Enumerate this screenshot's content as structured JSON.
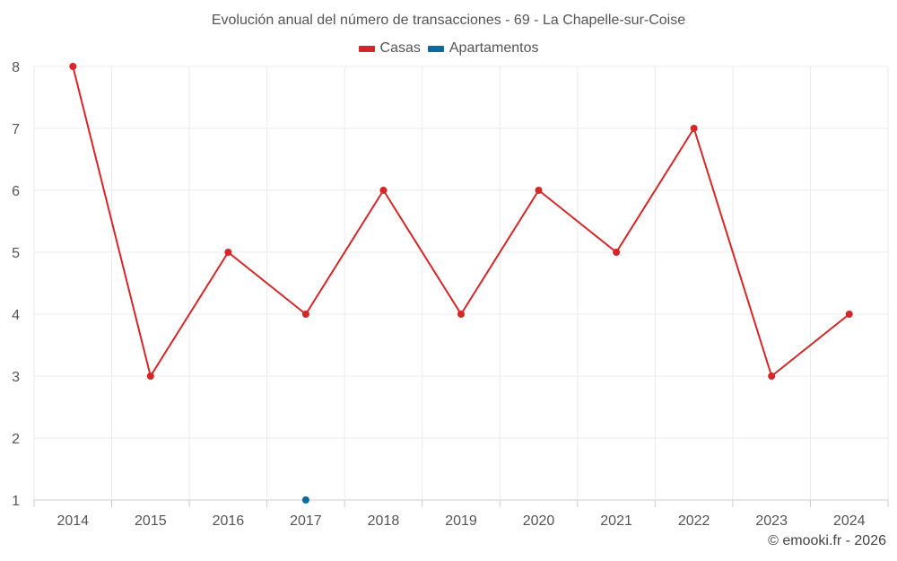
{
  "chart_data": {
    "type": "line",
    "title": "Evolución anual del número de transacciones - 69 - La Chapelle-sur-Coise",
    "categories": [
      "2014",
      "2015",
      "2016",
      "2017",
      "2018",
      "2019",
      "2020",
      "2021",
      "2022",
      "2023",
      "2024"
    ],
    "series": [
      {
        "name": "Casas",
        "color": "#d62728",
        "values": [
          8,
          3,
          5,
          4,
          6,
          4,
          6,
          5,
          7,
          3,
          4
        ]
      },
      {
        "name": "Apartamentos",
        "color": "#0b6aa2",
        "values": [
          null,
          null,
          null,
          1,
          null,
          null,
          null,
          null,
          null,
          null,
          null
        ]
      }
    ],
    "yticks": [
      1,
      2,
      3,
      4,
      5,
      6,
      7,
      8
    ],
    "ylim": [
      1,
      8
    ],
    "grid": true,
    "legend_position": "top-center",
    "xlabel": "",
    "ylabel": ""
  },
  "credit": "© emooki.fr - 2026"
}
